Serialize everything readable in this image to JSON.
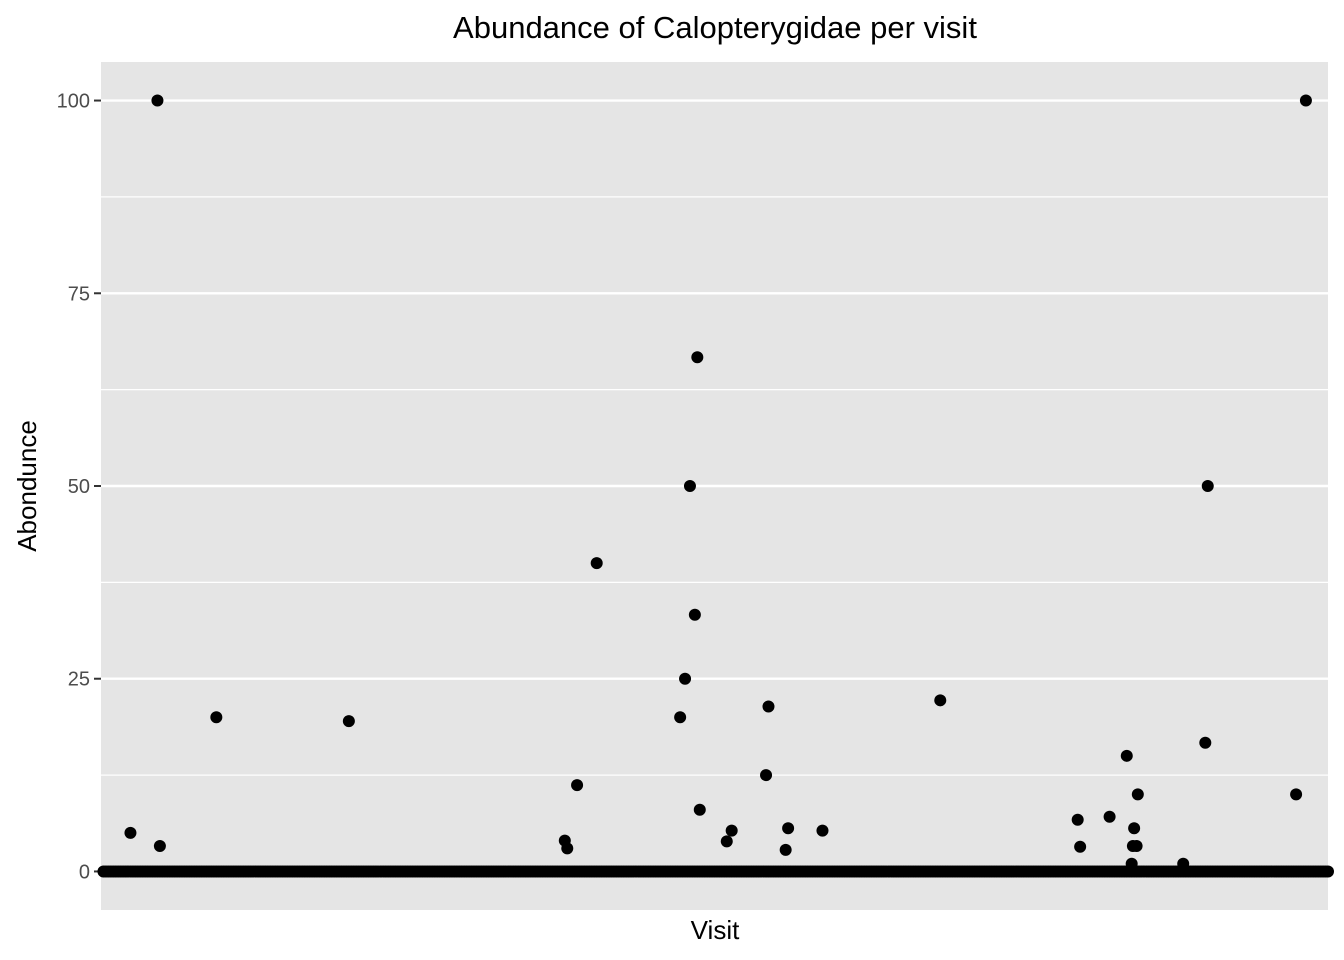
{
  "chart_data": {
    "type": "scatter",
    "title": "Abundance of Calopterygidae per visit",
    "xlabel": "Visit",
    "ylabel": "Abondunce",
    "x_ticks_shown": false,
    "xlim": [
      0,
      500
    ],
    "ylim": [
      -5,
      105
    ],
    "y_ticks": [
      0,
      25,
      50,
      75,
      100
    ],
    "y_tick_labels": [
      "0",
      "25",
      "50",
      "75",
      "100"
    ],
    "grid": true,
    "legend": "none",
    "colors": {
      "panel": "#e5e5e5",
      "grid": "#ffffff",
      "point": "#000000",
      "tick_text": "#4d4d4d"
    },
    "nonzero_points": [
      {
        "x": 12,
        "y": 5
      },
      {
        "x": 23,
        "y": 100
      },
      {
        "x": 24,
        "y": 3.3
      },
      {
        "x": 47,
        "y": 20
      },
      {
        "x": 101,
        "y": 19.5
      },
      {
        "x": 189,
        "y": 4
      },
      {
        "x": 190,
        "y": 3
      },
      {
        "x": 194,
        "y": 11.2
      },
      {
        "x": 202,
        "y": 40
      },
      {
        "x": 236,
        "y": 20
      },
      {
        "x": 238,
        "y": 25
      },
      {
        "x": 240,
        "y": 50
      },
      {
        "x": 242,
        "y": 33.3
      },
      {
        "x": 243,
        "y": 66.7
      },
      {
        "x": 244,
        "y": 8
      },
      {
        "x": 255,
        "y": 3.9
      },
      {
        "x": 257,
        "y": 5.3
      },
      {
        "x": 271,
        "y": 12.5
      },
      {
        "x": 272,
        "y": 21.4
      },
      {
        "x": 279,
        "y": 2.8
      },
      {
        "x": 280,
        "y": 5.6
      },
      {
        "x": 294,
        "y": 5.3
      },
      {
        "x": 342,
        "y": 22.2
      },
      {
        "x": 398,
        "y": 6.7
      },
      {
        "x": 399,
        "y": 3.2
      },
      {
        "x": 411,
        "y": 7.1
      },
      {
        "x": 418,
        "y": 15
      },
      {
        "x": 420,
        "y": 1
      },
      {
        "x": 420.5,
        "y": 3.3
      },
      {
        "x": 421,
        "y": 5.6
      },
      {
        "x": 422,
        "y": 3.3
      },
      {
        "x": 422.5,
        "y": 10
      },
      {
        "x": 441,
        "y": 1
      },
      {
        "x": 450,
        "y": 16.7
      },
      {
        "x": 451,
        "y": 50
      },
      {
        "x": 487,
        "y": 10
      },
      {
        "x": 491,
        "y": 100
      }
    ],
    "zero_points": {
      "x_start": 1,
      "x_end": 500,
      "count": 500,
      "y": 0
    }
  }
}
